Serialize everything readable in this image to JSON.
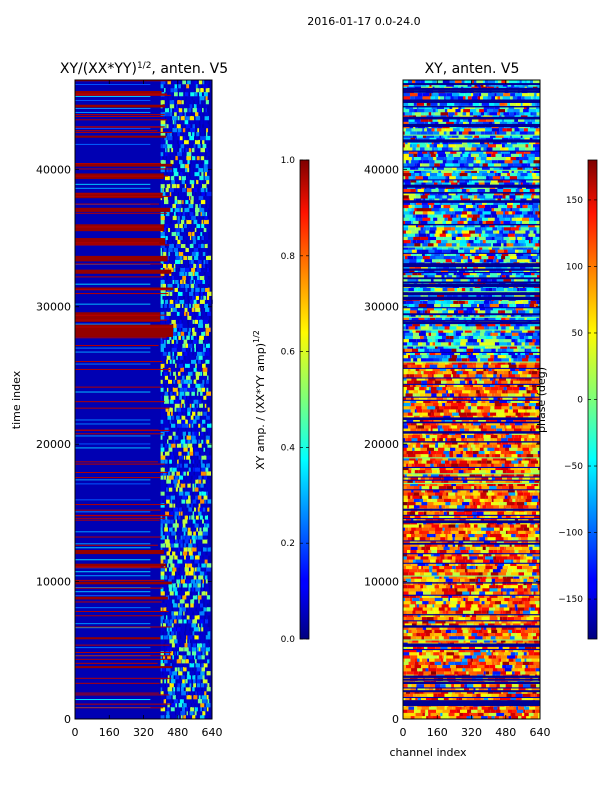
{
  "figure": {
    "suptitle": "2016-01-17 0.0-24.0"
  },
  "chart_data": [
    {
      "type": "heatmap",
      "title": "XY/(XX*YY)^1/2, anten. V5",
      "title_parts": {
        "main": "XY/(XX*YY)",
        "sup": "1/2",
        "tail": ", anten. V5"
      },
      "xlabel": "",
      "ylabel": "time index",
      "xlim": [
        0,
        640
      ],
      "ylim": [
        0,
        46500
      ],
      "xticks": [
        0,
        160,
        320,
        480,
        640
      ],
      "xtick_labels": [
        "0",
        "160",
        "320",
        "480",
        "640"
      ],
      "yticks": [
        0,
        10000,
        20000,
        30000,
        40000
      ],
      "ytick_labels": [
        "0",
        "10000",
        "20000",
        "30000",
        "40000"
      ],
      "colormap": "jet",
      "colorbar": {
        "label": "XY amp. / (XX*YY amp)^1/2",
        "label_parts": {
          "main": "XY amp. / (XX*YY amp)",
          "sup": "1/2"
        },
        "range": [
          0.0,
          1.0
        ],
        "ticks": [
          0.0,
          0.2,
          0.4,
          0.6,
          0.8,
          1.0
        ],
        "tick_labels": [
          "0.0",
          "0.2",
          "0.4",
          "0.6",
          "0.8",
          "1.0"
        ]
      },
      "description_data": {
        "background_value": 0.05,
        "bright_channel_range": [
          400,
          620
        ],
        "saturated_row_bands": [
          [
            27800,
            28700
          ],
          [
            28900,
            29600
          ],
          [
            31200,
            31400
          ],
          [
            32400,
            32700
          ],
          [
            33300,
            33700
          ],
          [
            34500,
            35000
          ],
          [
            35500,
            36000
          ],
          [
            36900,
            37200
          ],
          [
            37900,
            38300
          ],
          [
            39300,
            39700
          ],
          [
            12000,
            12300
          ],
          [
            11100,
            11300
          ],
          [
            9800,
            10000
          ],
          [
            8700,
            8900
          ],
          [
            5800,
            5950
          ],
          [
            3700,
            3850
          ],
          [
            40200,
            40400
          ],
          [
            42300,
            42450
          ],
          [
            44500,
            44700
          ],
          [
            45500,
            45700
          ]
        ]
      }
    },
    {
      "type": "heatmap",
      "title": "XY, anten. V5",
      "xlabel": "channel index",
      "ylabel": "",
      "xlim": [
        0,
        640
      ],
      "ylim": [
        0,
        46500
      ],
      "xticks": [
        0,
        160,
        320,
        480,
        640
      ],
      "xtick_labels": [
        "0",
        "160",
        "320",
        "480",
        "640"
      ],
      "yticks": [
        0,
        10000,
        20000,
        30000,
        40000
      ],
      "ytick_labels": [
        "0",
        "10000",
        "20000",
        "30000",
        "40000"
      ],
      "colormap": "jet",
      "colorbar": {
        "label": "phase (deg)",
        "range": [
          -180,
          180
        ],
        "ticks": [
          150,
          100,
          50,
          0,
          -50,
          -100,
          -150
        ],
        "tick_labels": [
          "150",
          "100",
          "50",
          "0",
          "−50",
          "−100",
          "−150"
        ]
      },
      "description_data": {
        "warm_region_time_range": [
          0,
          26000
        ],
        "cool_region_time_range": [
          26000,
          46500
        ]
      }
    }
  ]
}
